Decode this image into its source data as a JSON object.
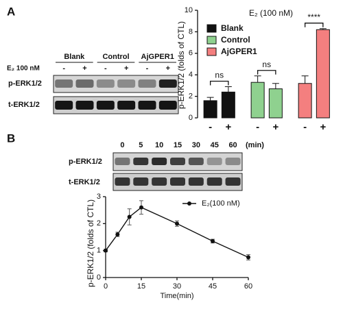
{
  "panel_labels": [
    "A",
    "B"
  ],
  "blot_a": {
    "groups": [
      "Blank",
      "Control",
      "AjGPER1"
    ],
    "treatment_label": "E₂ 100 nM",
    "signs": [
      "-",
      "+",
      "-",
      "+",
      "-",
      "+"
    ],
    "rows": [
      "p-ERK1/2",
      "t-ERK1/2"
    ]
  },
  "blot_b": {
    "times": [
      "0",
      "5",
      "10",
      "15",
      "30",
      "45",
      "60"
    ],
    "unit": "(min)",
    "rows": [
      "p-ERK1/2",
      "t-ERK1/2"
    ]
  },
  "chart_data": [
    {
      "type": "bar",
      "title": "E₂ (100 nM)",
      "y_label": "p-ERK1/2 (folds of CTL)",
      "categories": [
        "-",
        "+"
      ],
      "series": [
        {
          "name": "Blank",
          "color": "#111111",
          "values": [
            1.6,
            2.4
          ],
          "errors": [
            0.3,
            0.5
          ]
        },
        {
          "name": "Control",
          "color": "#8fd18f",
          "values": [
            3.3,
            2.7
          ],
          "errors": [
            0.6,
            0.5
          ]
        },
        {
          "name": "AjGPER1",
          "color": "#f47f7f",
          "values": [
            3.2,
            8.2
          ],
          "errors": [
            0.7,
            0.1
          ]
        }
      ],
      "annotations": [
        "ns",
        "ns",
        "****"
      ],
      "ylim": [
        0,
        10
      ],
      "yticks": [
        0,
        2,
        4,
        6,
        8,
        10
      ],
      "legend": "upper-left"
    },
    {
      "type": "line",
      "x_label": "Time(min)",
      "y_label": "p-ERK1/2 (folds of CTL)",
      "x": [
        0,
        5,
        10,
        15,
        30,
        45,
        60
      ],
      "series": [
        {
          "name": "E₂(100 nM)",
          "color": "#111111",
          "values": [
            1.0,
            1.6,
            2.25,
            2.6,
            2.0,
            1.35,
            0.75
          ],
          "errors": [
            0.05,
            0.08,
            0.3,
            0.25,
            0.1,
            0.07,
            0.1
          ]
        }
      ],
      "xlim": [
        0,
        60
      ],
      "xticks": [
        0,
        15,
        30,
        45,
        60
      ],
      "ylim": [
        0,
        3
      ],
      "yticks": [
        0,
        1,
        2,
        3
      ],
      "legend": "upper-right"
    }
  ]
}
